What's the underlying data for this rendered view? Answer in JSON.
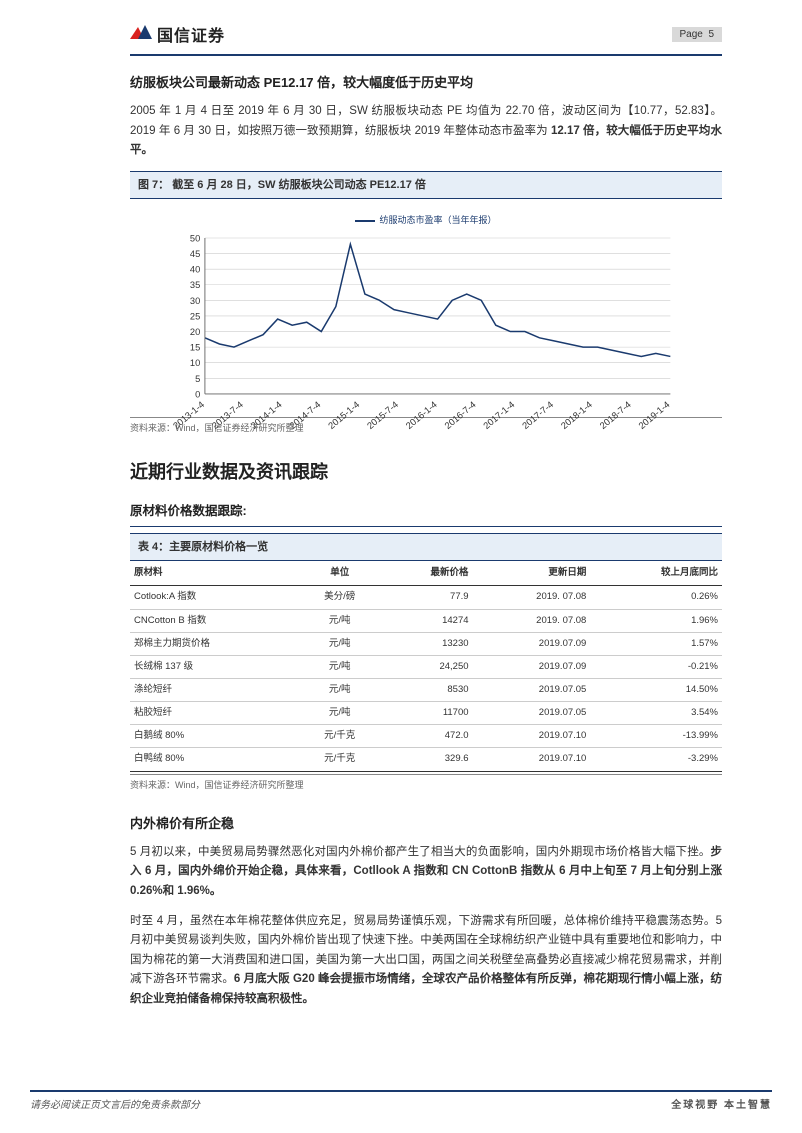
{
  "header": {
    "company_name": "国信证券",
    "page_label": "Page",
    "page_number": "5",
    "logo_colors": {
      "red": "#d9221f",
      "blue": "#1a3a6e"
    }
  },
  "section1": {
    "title": "纺服板块公司最新动态 PE12.17 倍，较大幅度低于历史平均",
    "para1_prefix": "2005 年 1 月 4 日至 2019 年 6 月 30 日，SW 纺服板块动态 PE 均值为 22.70 倍，波动区间为【10.77，52.83】。2019 年 6 月 30 日，如按照万德一致预期算，纺服板块 2019 年整体动态市盈率为 ",
    "para1_bold": "12.17 倍，较大幅低于历史平均水平。",
    "fig_title": "图 7：  截至 6 月 28 日，SW 纺服板块公司动态 PE12.17 倍",
    "chart": {
      "type": "line",
      "legend_label": "纺服动态市盈率（当年年报）",
      "x_labels": [
        "2013-1-4",
        "2013-7-4",
        "2014-1-4",
        "2014-7-4",
        "2015-1-4",
        "2015-7-4",
        "2016-1-4",
        "2016-7-4",
        "2017-1-4",
        "2017-7-4",
        "2018-1-4",
        "2018-7-4",
        "2019-1-4"
      ],
      "y_ticks": [
        0,
        5,
        10,
        15,
        20,
        25,
        30,
        35,
        40,
        45,
        50
      ],
      "ylim": [
        0,
        50
      ],
      "values": [
        18,
        16,
        15,
        17,
        19,
        24,
        22,
        23,
        20,
        28,
        48,
        32,
        30,
        27,
        26,
        25,
        24,
        30,
        32,
        30,
        22,
        20,
        20,
        18,
        17,
        16,
        15,
        15,
        14,
        13,
        12,
        13,
        12
      ],
      "line_color": "#1a3a6e",
      "grid_color": "#cccccc",
      "background_color": "#ffffff",
      "line_width": 1.3,
      "axis_fontsize": 8
    },
    "source": "资料来源：Wind，国信证券经济研究所整理"
  },
  "section2": {
    "big_title": "近期行业数据及资讯跟踪",
    "sub_title": "原材料价格数据跟踪:",
    "table_title": "表 4：主要原材料价格一览",
    "table": {
      "columns": [
        "原材料",
        "单位",
        "最新价格",
        "更新日期",
        "较上月底同比"
      ],
      "col_align": [
        "left",
        "center",
        "right",
        "right",
        "right"
      ],
      "rows": [
        [
          "Cotlook:A 指数",
          "美分/磅",
          "77.9",
          "2019. 07.08",
          "0.26%"
        ],
        [
          "CNCotton B 指数",
          "元/吨",
          "14274",
          "2019. 07.08",
          "1.96%"
        ],
        [
          "郑棉主力期货价格",
          "元/吨",
          "13230",
          "2019.07.09",
          "1.57%"
        ],
        [
          "长绒棉 137 级",
          "元/吨",
          "24,250",
          "2019.07.09",
          "-0.21%"
        ],
        [
          "涤纶短纤",
          "元/吨",
          "8530",
          "2019.07.05",
          "14.50%"
        ],
        [
          "粘胶短纤",
          "元/吨",
          "11700",
          "2019.07.05",
          "3.54%"
        ],
        [
          "白鹅绒 80%",
          "元/千克",
          "472.0",
          "2019.07.10",
          "-13.99%"
        ],
        [
          "白鸭绒 80%",
          "元/千克",
          "329.6",
          "2019.07.10",
          "-3.29%"
        ]
      ]
    },
    "table_source": "资料来源：Wind，国信证券经济研究所整理"
  },
  "section3": {
    "title": "内外棉价有所企稳",
    "para1_plain": "5 月初以来，中美贸易局势骤然恶化对国内外棉价都产生了相当大的负面影响，国内外期现市场价格皆大幅下挫。",
    "para1_bold": "步入 6 月，国内外绵价开始企稳，具体来看，Cotllook A 指数和 CN CottonB 指数从 6 月中上旬至 7 月上旬分别上涨 0.26%和 1.96%。",
    "para2_plain": "时至 4 月，虽然在本年棉花整体供应充足，贸易局势谨慎乐观，下游需求有所回暖，总体棉价维持平稳震荡态势。5 月初中美贸易谈判失败，国内外棉价皆出现了快速下挫。中美两国在全球棉纺织产业链中具有重要地位和影响力，中国为棉花的第一大消费国和进口国，美国为第一大出口国，两国之间关税壁垒高叠势必直接减少棉花贸易需求，并削减下游各环节需求。",
    "para2_bold": "6 月底大阪 G20 峰会提振市场情绪，全球农产品价格整体有所反弹，棉花期现行情小幅上涨，纺织企业竞拍储备棉保持较高积极性。"
  },
  "footer": {
    "left": "请务必阅读正页文言后的免责条款部分",
    "right": "全球视野  本土智慧"
  }
}
